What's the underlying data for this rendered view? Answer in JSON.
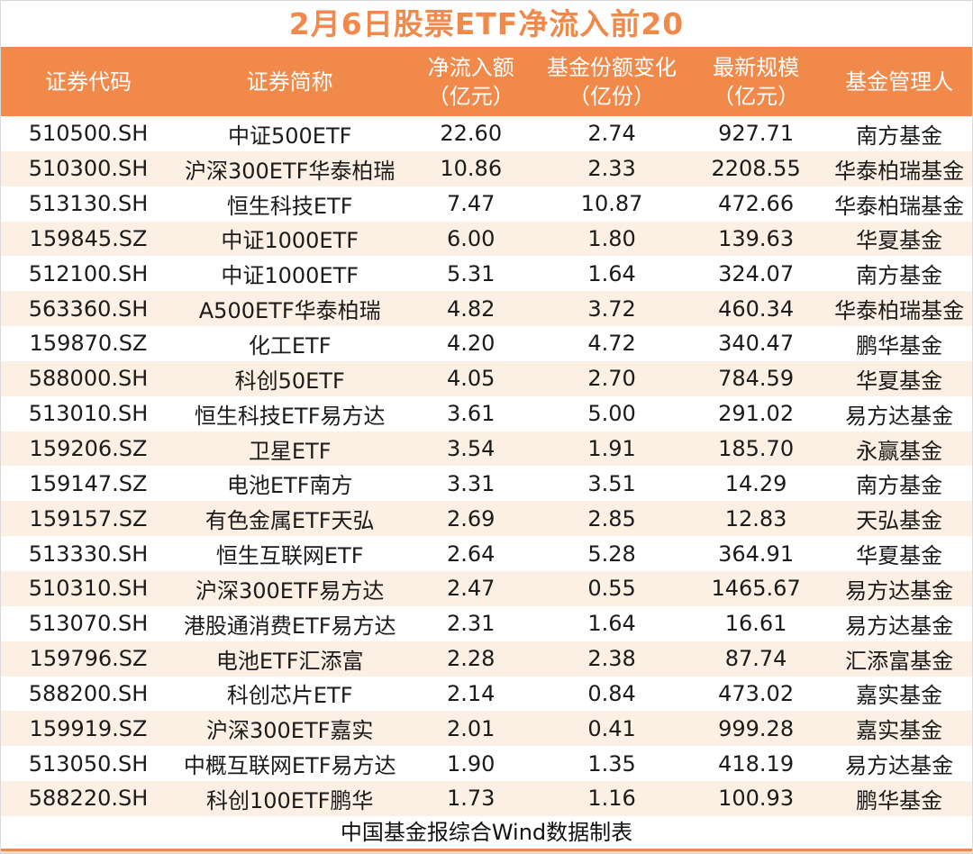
{
  "title": "2月6日股票ETF净流入前20",
  "footer": "中国基金报综合Wind数据制表",
  "colors": {
    "accent_orange": "#F0894A",
    "header_bg": "#F0894A",
    "header_text": "#FFFFFF",
    "alt_row_bg": "#FCEFE3",
    "row_bg": "#FFFFFF",
    "title_color": "#F0894A",
    "body_text": "#1B1B1B"
  },
  "chart_data": {
    "type": "table",
    "title": "2月6日股票ETF净流入前20",
    "source_note": "中国基金报综合Wind数据制表",
    "columns": [
      {
        "label": "证券代码",
        "unit": ""
      },
      {
        "label": "证券简称",
        "unit": ""
      },
      {
        "label": "净流入额",
        "unit": "（亿元）"
      },
      {
        "label": "基金份额变化",
        "unit": "（亿份）"
      },
      {
        "label": "最新规模",
        "unit": "（亿元）"
      },
      {
        "label": "基金管理人",
        "unit": ""
      }
    ],
    "rows": [
      [
        "510500.SH",
        "中证500ETF",
        "22.60",
        "2.74",
        "927.71",
        "南方基金"
      ],
      [
        "510300.SH",
        "沪深300ETF华泰柏瑞",
        "10.86",
        "2.33",
        "2208.55",
        "华泰柏瑞基金"
      ],
      [
        "513130.SH",
        "恒生科技ETF",
        "7.47",
        "10.87",
        "472.66",
        "华泰柏瑞基金"
      ],
      [
        "159845.SZ",
        "中证1000ETF",
        "6.00",
        "1.80",
        "139.63",
        "华夏基金"
      ],
      [
        "512100.SH",
        "中证1000ETF",
        "5.31",
        "1.64",
        "324.07",
        "南方基金"
      ],
      [
        "563360.SH",
        "A500ETF华泰柏瑞",
        "4.82",
        "3.72",
        "460.34",
        "华泰柏瑞基金"
      ],
      [
        "159870.SZ",
        "化工ETF",
        "4.20",
        "4.72",
        "340.47",
        "鹏华基金"
      ],
      [
        "588000.SH",
        "科创50ETF",
        "4.05",
        "2.70",
        "784.59",
        "华夏基金"
      ],
      [
        "513010.SH",
        "恒生科技ETF易方达",
        "3.61",
        "5.00",
        "291.02",
        "易方达基金"
      ],
      [
        "159206.SZ",
        "卫星ETF",
        "3.54",
        "1.91",
        "185.70",
        "永赢基金"
      ],
      [
        "159147.SZ",
        "电池ETF南方",
        "3.31",
        "3.51",
        "14.29",
        "南方基金"
      ],
      [
        "159157.SZ",
        "有色金属ETF天弘",
        "2.69",
        "2.85",
        "12.83",
        "天弘基金"
      ],
      [
        "513330.SH",
        "恒生互联网ETF",
        "2.64",
        "5.28",
        "364.91",
        "华夏基金"
      ],
      [
        "510310.SH",
        "沪深300ETF易方达",
        "2.47",
        "0.55",
        "1465.67",
        "易方达基金"
      ],
      [
        "513070.SH",
        "港股通消费ETF易方达",
        "2.31",
        "1.64",
        "16.61",
        "易方达基金"
      ],
      [
        "159796.SZ",
        "电池ETF汇添富",
        "2.28",
        "2.38",
        "87.74",
        "汇添富基金"
      ],
      [
        "588200.SH",
        "科创芯片ETF",
        "2.14",
        "0.84",
        "473.02",
        "嘉实基金"
      ],
      [
        "159919.SZ",
        "沪深300ETF嘉实",
        "2.01",
        "0.41",
        "999.28",
        "嘉实基金"
      ],
      [
        "513050.SH",
        "中概互联网ETF易方达",
        "1.90",
        "1.35",
        "418.19",
        "易方达基金"
      ],
      [
        "588220.SH",
        "科创100ETF鹏华",
        "1.73",
        "1.16",
        "100.93",
        "鹏华基金"
      ]
    ]
  }
}
